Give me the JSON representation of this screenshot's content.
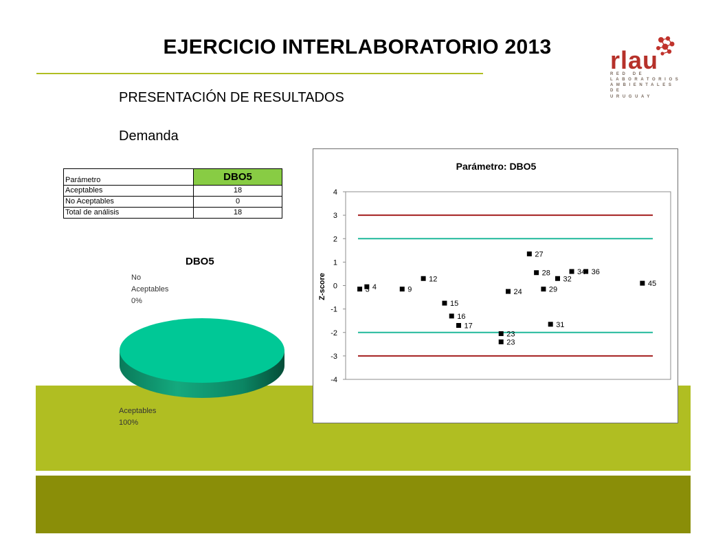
{
  "slide": {
    "title": "EJERCICIO INTERLABORATORIO 2013",
    "subtitle": "PRESENTACIÓN DE RESULTADOS",
    "section": "Demanda",
    "logo": {
      "word": "rlau",
      "lines": [
        "RED DE",
        "LABORATORIOS",
        "AMBIENTALES",
        "DE URUGUAY"
      ]
    },
    "colors": {
      "band_light": "#b0be22",
      "band_dark": "#8a8e08",
      "logo_red": "#b6312a",
      "pie_green": "#00c896"
    }
  },
  "table": {
    "header_label": "Parámetro",
    "header_value": "DBO5",
    "rows": [
      {
        "label": "Aceptables",
        "value": "18"
      },
      {
        "label": "No Aceptables",
        "value": "0"
      },
      {
        "label": "Total de análisis",
        "value": "18"
      }
    ]
  },
  "chart_data": [
    {
      "type": "pie",
      "title": "DBO5",
      "slices": [
        {
          "label": "No Aceptables",
          "percent": "0%",
          "value": 0
        },
        {
          "label": "Aceptables",
          "percent": "100%",
          "value": 100
        }
      ],
      "color": "#00c896"
    },
    {
      "type": "scatter",
      "title": "Parámetro: DBO5",
      "xlabel": "",
      "ylabel": "Z-score",
      "ylim": [
        -4,
        4
      ],
      "yticks": [
        "4",
        "3",
        "2",
        "1",
        "0",
        "-1",
        "-2",
        "-3",
        "-4"
      ],
      "reference_lines": [
        {
          "y": 3,
          "color": "#a31c1c"
        },
        {
          "y": 2,
          "color": "#1fb89a"
        },
        {
          "y": -2,
          "color": "#1fb89a"
        },
        {
          "y": -3,
          "color": "#a31c1c"
        }
      ],
      "points": [
        {
          "x": 1,
          "y": -0.15,
          "label": "3"
        },
        {
          "x": 1.5,
          "y": -0.05,
          "label": "4"
        },
        {
          "x": 4,
          "y": -0.15,
          "label": "9"
        },
        {
          "x": 5.5,
          "y": 0.3,
          "label": "12"
        },
        {
          "x": 7,
          "y": -0.75,
          "label": "15"
        },
        {
          "x": 7.5,
          "y": -1.3,
          "label": "16"
        },
        {
          "x": 8,
          "y": -1.7,
          "label": "17"
        },
        {
          "x": 11,
          "y": -2.05,
          "label": "23"
        },
        {
          "x": 11,
          "y": -2.4,
          "label": "23"
        },
        {
          "x": 11.5,
          "y": -0.25,
          "label": "24"
        },
        {
          "x": 13,
          "y": 1.35,
          "label": "27"
        },
        {
          "x": 13.5,
          "y": 0.55,
          "label": "28"
        },
        {
          "x": 14,
          "y": -0.15,
          "label": "29"
        },
        {
          "x": 14.5,
          "y": -1.65,
          "label": "31"
        },
        {
          "x": 15,
          "y": 0.3,
          "label": "32"
        },
        {
          "x": 16,
          "y": 0.6,
          "label": "34"
        },
        {
          "x": 17,
          "y": 0.6,
          "label": "36"
        },
        {
          "x": 21,
          "y": 0.1,
          "label": "45"
        }
      ]
    }
  ]
}
